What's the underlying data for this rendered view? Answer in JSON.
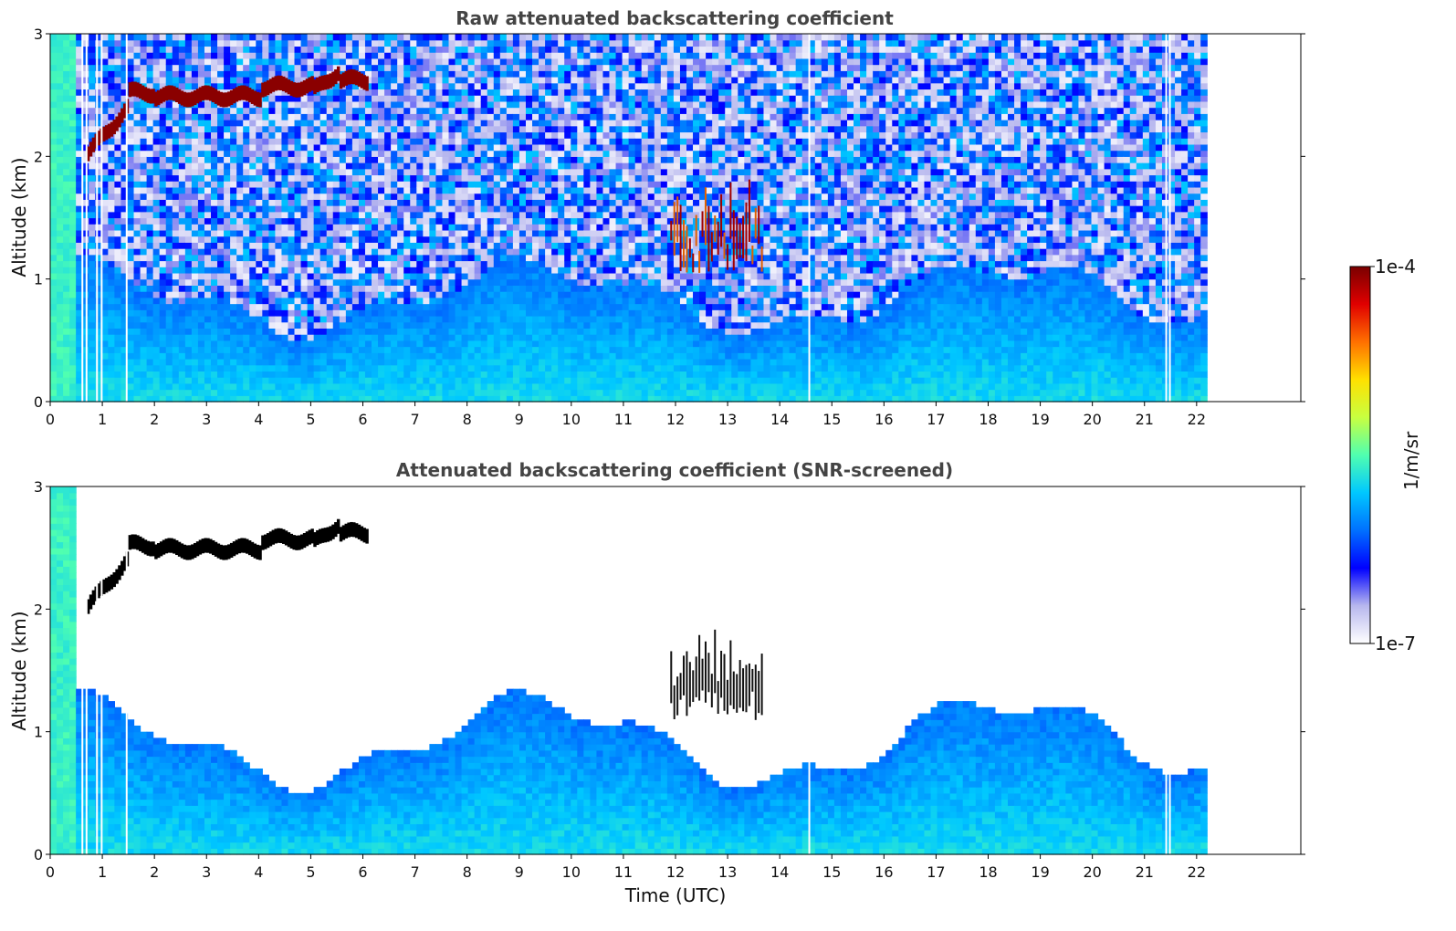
{
  "figure": {
    "xlabel": "Time (UTC)",
    "colorbar": {
      "label": "1/m/sr",
      "tick_max": "1e-4",
      "tick_min": "1e-7",
      "colormap": [
        "#ffffff",
        "#b7b7ee",
        "#0000ff",
        "#0070ff",
        "#00c8ff",
        "#50ffb0",
        "#c8ff40",
        "#ffe000",
        "#ff7000",
        "#e00000",
        "#7a0000"
      ]
    }
  },
  "chart_data": [
    {
      "type": "heatmap",
      "title": "Raw attenuated backscattering coefficient",
      "xlabel": "",
      "ylabel": "Altitude (km)",
      "xlim": [
        0,
        24
      ],
      "ylim": [
        0,
        3
      ],
      "xticks": [
        "0",
        "1",
        "2",
        "3",
        "4",
        "5",
        "6",
        "7",
        "8",
        "9",
        "10",
        "11",
        "12",
        "13",
        "14",
        "15",
        "16",
        "17",
        "18",
        "19",
        "20",
        "21",
        "22"
      ],
      "yticks": [
        "0",
        "1",
        "2",
        "3"
      ],
      "data_end_hour": 22.2,
      "gap_hours": [
        0.6,
        0.68,
        0.88,
        0.97,
        1.45,
        14.55,
        21.4,
        21.47
      ],
      "features": [
        {
          "kind": "cloud_layer",
          "from_hour": 0.7,
          "to_hour": 6.05,
          "altitude_km": [
            2.0,
            2.7
          ],
          "intensity": "high"
        },
        {
          "kind": "cloud_patches",
          "from_hour": 11.9,
          "to_hour": 13.7,
          "altitude_km": [
            1.05,
            1.85
          ],
          "intensity": "high"
        },
        {
          "kind": "boundary_layer",
          "from_hour": 0,
          "to_hour": 22.2,
          "top_km": [
            0.6,
            1.1
          ],
          "intensity": "medium"
        },
        {
          "kind": "noise_above_boundary_layer",
          "from_hour": 0,
          "to_hour": 22.2,
          "altitude_km": [
            1.0,
            3.0
          ]
        }
      ]
    },
    {
      "type": "heatmap",
      "title": "Attenuated backscattering coefficient (SNR-screened)",
      "xlabel": "Time (UTC)",
      "ylabel": "Altitude (km)",
      "xlim": [
        0,
        24
      ],
      "ylim": [
        0,
        3
      ],
      "xticks": [
        "0",
        "1",
        "2",
        "3",
        "4",
        "5",
        "6",
        "7",
        "8",
        "9",
        "10",
        "11",
        "12",
        "13",
        "14",
        "15",
        "16",
        "17",
        "18",
        "19",
        "20",
        "21",
        "22"
      ],
      "yticks": [
        "0",
        "1",
        "2",
        "3"
      ],
      "data_end_hour": 22.2,
      "gap_hours": [
        0.6,
        0.68,
        0.88,
        0.97,
        1.45,
        14.55,
        21.4,
        21.47
      ],
      "features": [
        {
          "kind": "cloud_layer",
          "from_hour": 0.7,
          "to_hour": 6.05,
          "altitude_km": [
            2.0,
            2.7
          ],
          "intensity": "saturated"
        },
        {
          "kind": "cloud_patches",
          "from_hour": 11.9,
          "to_hour": 13.7,
          "altitude_km": [
            1.05,
            1.85
          ],
          "intensity": "saturated"
        },
        {
          "kind": "boundary_layer",
          "from_hour": 0,
          "to_hour": 22.2,
          "top_km": [
            0.6,
            1.25
          ],
          "intensity": "medium"
        }
      ]
    }
  ]
}
